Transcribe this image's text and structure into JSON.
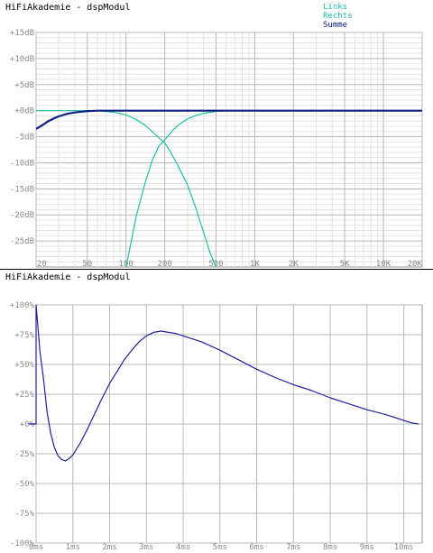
{
  "chart_data": [
    {
      "type": "line",
      "title": "HiFiAkademie - dspModul",
      "x_scale": "log",
      "xlim": [
        20,
        20000
      ],
      "ylim": [
        -30,
        15
      ],
      "x_ticks": [
        20,
        50,
        100,
        200,
        500,
        1000,
        2000,
        5000,
        10000,
        20000
      ],
      "x_tick_labels": [
        "20",
        "50",
        "100",
        "200",
        "500",
        "1K",
        "2K",
        "5K",
        "10K",
        "20K"
      ],
      "y_ticks": [
        15,
        10,
        5,
        0,
        -5,
        -10,
        -15,
        -20,
        -25
      ],
      "y_tick_labels": [
        "+15dB",
        "+10dB",
        "+5dB",
        "+0dB",
        "-5dB",
        "-10dB",
        "-15dB",
        "-20dB",
        "-25dB"
      ],
      "grid": true,
      "legend_position": "top-right",
      "series": [
        {
          "name": "Links",
          "color": "#20c0a0",
          "x": [
            20,
            40,
            60,
            80,
            100,
            120,
            140,
            160,
            180,
            200,
            220,
            250,
            300,
            350,
            400,
            450,
            500
          ],
          "y": [
            0,
            0,
            0,
            -0.3,
            -0.8,
            -1.7,
            -2.8,
            -4.0,
            -5.2,
            -6.2,
            -7.8,
            -10.3,
            -14.2,
            -18.8,
            -23.3,
            -27.3,
            -30.0
          ]
        },
        {
          "name": "Rechts",
          "color": "#20c0a0",
          "x": [
            100,
            110,
            120,
            140,
            160,
            180,
            200,
            230,
            260,
            300,
            350,
            400,
            500,
            600,
            20000
          ],
          "y": [
            -30.0,
            -25.0,
            -20.2,
            -14.0,
            -9.5,
            -6.8,
            -5.6,
            -3.8,
            -2.6,
            -1.6,
            -0.9,
            -0.5,
            -0.15,
            0,
            0
          ]
        },
        {
          "name": "Summe",
          "color": "#102080",
          "x": [
            20,
            22,
            25,
            28,
            30,
            35,
            40,
            45,
            50,
            60,
            70,
            20000
          ],
          "y": [
            -3.5,
            -2.9,
            -2.0,
            -1.4,
            -1.1,
            -0.6,
            -0.35,
            -0.2,
            -0.1,
            0,
            0,
            0
          ]
        }
      ]
    },
    {
      "type": "line",
      "title": "HiFiAkademie - dspModul",
      "xlim": [
        0,
        10.5
      ],
      "ylim": [
        -100,
        100
      ],
      "x_ticks": [
        0,
        1,
        2,
        3,
        4,
        5,
        6,
        7,
        8,
        9,
        10
      ],
      "x_tick_labels": [
        "0ms",
        "1ms",
        "2ms",
        "3ms",
        "4ms",
        "5ms",
        "6ms",
        "7ms",
        "8ms",
        "9ms",
        "10ms"
      ],
      "y_ticks": [
        100,
        75,
        50,
        25,
        0,
        -25,
        -50,
        -75,
        -100
      ],
      "y_tick_labels": [
        "+100%",
        "+75%",
        "+50%",
        "+25%",
        "+0%",
        "-25%",
        "-50%",
        "-75%",
        "-100%"
      ],
      "grid": true,
      "series": [
        {
          "color": "#2020a0",
          "x": [
            0,
            0.05,
            0.1,
            0.2,
            0.3,
            0.4,
            0.5,
            0.6,
            0.7,
            0.8,
            0.9,
            1.0,
            1.2,
            1.4,
            1.6,
            1.8,
            2.0,
            2.2,
            2.4,
            2.6,
            2.8,
            3.0,
            3.2,
            3.4,
            3.6,
            3.8,
            4.0,
            4.5,
            5.0,
            5.5,
            6.0,
            6.5,
            7.0,
            7.5,
            8.0,
            8.5,
            9.0,
            9.5,
            10.0,
            10.2,
            10.4
          ],
          "y": [
            100,
            82,
            62,
            38,
            10,
            -8,
            -20,
            -27,
            -30,
            -31,
            -29,
            -26,
            -16,
            -4,
            9,
            22,
            34,
            44,
            54,
            62,
            69,
            74,
            77,
            78,
            77,
            76,
            74,
            69,
            62,
            54,
            46,
            39,
            33,
            28,
            22,
            17,
            12,
            8,
            3,
            1,
            0
          ]
        }
      ]
    }
  ]
}
